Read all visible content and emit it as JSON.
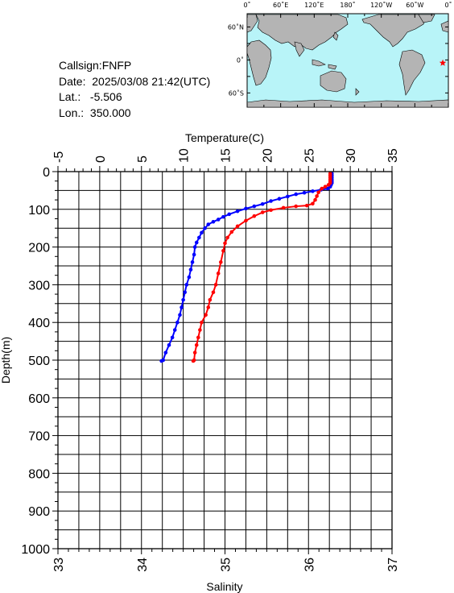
{
  "station": {
    "callsign": "Callsign:FNFP",
    "date_label": "Date:",
    "date_value": "2025/03/08 21:42(UTC)",
    "lat_label": "Lat.:",
    "lat_value": "-5.506",
    "lon_label": "Lon.:",
    "lon_value": "350.000"
  },
  "map": {
    "lon_labels": [
      "0˚",
      "60˚E",
      "120˚E",
      "180˚",
      "120˚W",
      "60˚W",
      "0˚"
    ],
    "lat_labels": [
      "60˚N",
      "0˚",
      "60˚S"
    ],
    "ocean_color": "#b8f4f8",
    "land_color": "#b4b4b4",
    "marker_color": "#ff0000",
    "marker": {
      "lon": 350.0,
      "lat": -5.506
    }
  },
  "chart_data": {
    "type": "line",
    "title": "",
    "temperature_axis": {
      "label": "Temperature(C)",
      "range": [
        -5,
        35
      ],
      "ticks": [
        -5,
        0,
        5,
        10,
        15,
        20,
        25,
        30,
        35
      ]
    },
    "salinity_axis": {
      "label": "Salinity",
      "range": [
        33,
        37
      ],
      "ticks": [
        33,
        34,
        35,
        36,
        37
      ]
    },
    "depth_axis": {
      "label": "Depth(m)",
      "range": [
        0,
        1000
      ],
      "ticks": [
        0,
        100,
        200,
        300,
        400,
        500,
        600,
        700,
        800,
        900,
        1000
      ],
      "reversed": true
    },
    "grid": true,
    "series": [
      {
        "axis": "temperature",
        "color": "#0000ff",
        "points": [
          [
            27.8,
            5
          ],
          [
            27.8,
            10
          ],
          [
            27.8,
            15
          ],
          [
            27.8,
            20
          ],
          [
            27.8,
            25
          ],
          [
            27.8,
            30
          ],
          [
            27.7,
            35
          ],
          [
            27.6,
            40
          ],
          [
            27.3,
            45
          ],
          [
            26.5,
            48
          ],
          [
            25.5,
            52
          ],
          [
            24.5,
            56
          ],
          [
            23.5,
            60
          ],
          [
            22.5,
            66
          ],
          [
            21.5,
            72
          ],
          [
            20.5,
            78
          ],
          [
            19.5,
            86
          ],
          [
            18.5,
            92
          ],
          [
            17.5,
            98
          ],
          [
            16.5,
            105
          ],
          [
            15.5,
            113
          ],
          [
            14.8,
            120
          ],
          [
            14.2,
            127
          ],
          [
            13.6,
            133
          ],
          [
            13.0,
            140
          ],
          [
            12.6,
            150
          ],
          [
            12.2,
            162
          ],
          [
            11.9,
            175
          ],
          [
            11.6,
            188
          ],
          [
            11.4,
            200
          ],
          [
            11.3,
            220
          ],
          [
            11.1,
            240
          ],
          [
            10.9,
            260
          ],
          [
            10.7,
            280
          ],
          [
            10.4,
            300
          ],
          [
            10.2,
            320
          ],
          [
            10.0,
            340
          ],
          [
            9.8,
            360
          ],
          [
            9.6,
            380
          ],
          [
            9.3,
            400
          ],
          [
            9.0,
            420
          ],
          [
            8.7,
            440
          ],
          [
            8.3,
            460
          ],
          [
            7.9,
            480
          ],
          [
            7.6,
            500
          ],
          [
            7.4,
            502
          ]
        ]
      },
      {
        "axis": "salinity",
        "color": "#ff0000",
        "points": [
          [
            36.26,
            5
          ],
          [
            36.26,
            10
          ],
          [
            36.26,
            15
          ],
          [
            36.26,
            20
          ],
          [
            36.26,
            25
          ],
          [
            36.26,
            30
          ],
          [
            36.24,
            35
          ],
          [
            36.2,
            40
          ],
          [
            36.16,
            45
          ],
          [
            36.12,
            55
          ],
          [
            36.1,
            65
          ],
          [
            36.08,
            75
          ],
          [
            36.05,
            85
          ],
          [
            35.98,
            90
          ],
          [
            35.85,
            92
          ],
          [
            35.7,
            96
          ],
          [
            35.55,
            102
          ],
          [
            35.45,
            108
          ],
          [
            35.35,
            118
          ],
          [
            35.25,
            130
          ],
          [
            35.15,
            145
          ],
          [
            35.08,
            160
          ],
          [
            35.03,
            175
          ],
          [
            35.0,
            190
          ],
          [
            34.98,
            210
          ],
          [
            34.95,
            240
          ],
          [
            34.92,
            270
          ],
          [
            34.89,
            300
          ],
          [
            34.86,
            320
          ],
          [
            34.82,
            340
          ],
          [
            34.8,
            360
          ],
          [
            34.77,
            380
          ],
          [
            34.72,
            400
          ],
          [
            34.7,
            420
          ],
          [
            34.68,
            440
          ],
          [
            34.66,
            460
          ],
          [
            34.64,
            480
          ],
          [
            34.63,
            500
          ],
          [
            34.62,
            502
          ]
        ]
      }
    ]
  }
}
